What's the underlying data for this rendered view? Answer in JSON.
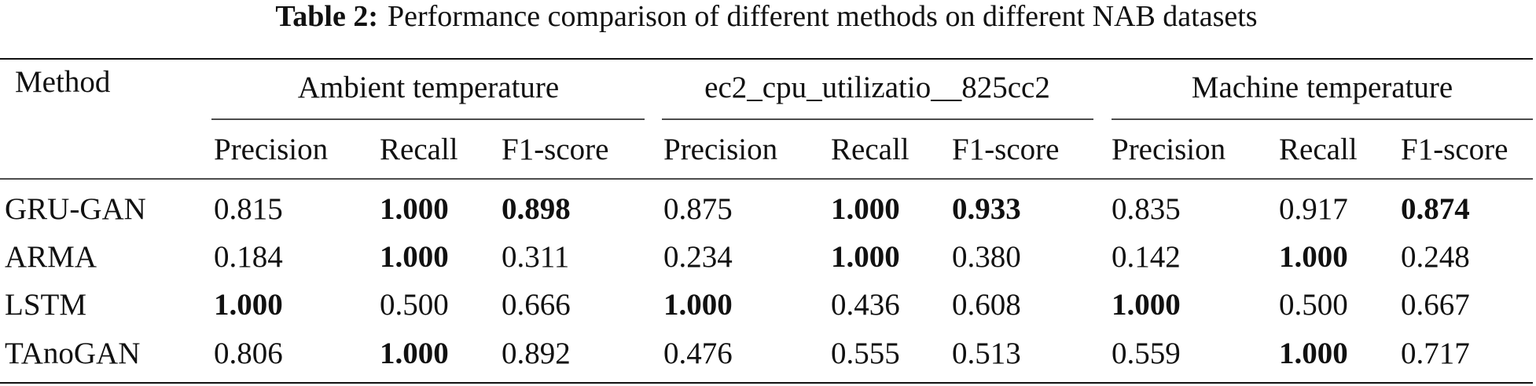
{
  "caption": {
    "label": "Table 2:",
    "title": "Performance comparison of different methods on different NAB datasets"
  },
  "table": {
    "corner": "Method",
    "groups": [
      "Ambient temperature",
      "ec2_cpu_utilizatio__825cc2",
      "Machine temperature"
    ],
    "columns": [
      "Precision",
      "Recall",
      "F1-score",
      "Precision",
      "Recall",
      "F1-score",
      "Precision",
      "Recall",
      "F1-score"
    ],
    "rows": [
      {
        "method": "GRU-GAN",
        "cells": [
          "0.815",
          "1.000",
          "0.898",
          "0.875",
          "1.000",
          "0.933",
          "0.835",
          "0.917",
          "0.874"
        ],
        "bold": [
          false,
          true,
          true,
          false,
          true,
          true,
          false,
          false,
          true
        ]
      },
      {
        "method": "ARMA",
        "cells": [
          "0.184",
          "1.000",
          "0.311",
          "0.234",
          "1.000",
          "0.380",
          "0.142",
          "1.000",
          "0.248"
        ],
        "bold": [
          false,
          true,
          false,
          false,
          true,
          false,
          false,
          true,
          false
        ]
      },
      {
        "method": "LSTM",
        "cells": [
          "1.000",
          "0.500",
          "0.666",
          "1.000",
          "0.436",
          "0.608",
          "1.000",
          "0.500",
          "0.667"
        ],
        "bold": [
          true,
          false,
          false,
          true,
          false,
          false,
          true,
          false,
          false
        ]
      },
      {
        "method": "TAnoGAN",
        "cells": [
          "0.806",
          "1.000",
          "0.892",
          "0.476",
          "0.555",
          "0.513",
          "0.559",
          "1.000",
          "0.717"
        ],
        "bold": [
          false,
          true,
          false,
          false,
          false,
          false,
          false,
          true,
          false
        ]
      }
    ]
  }
}
